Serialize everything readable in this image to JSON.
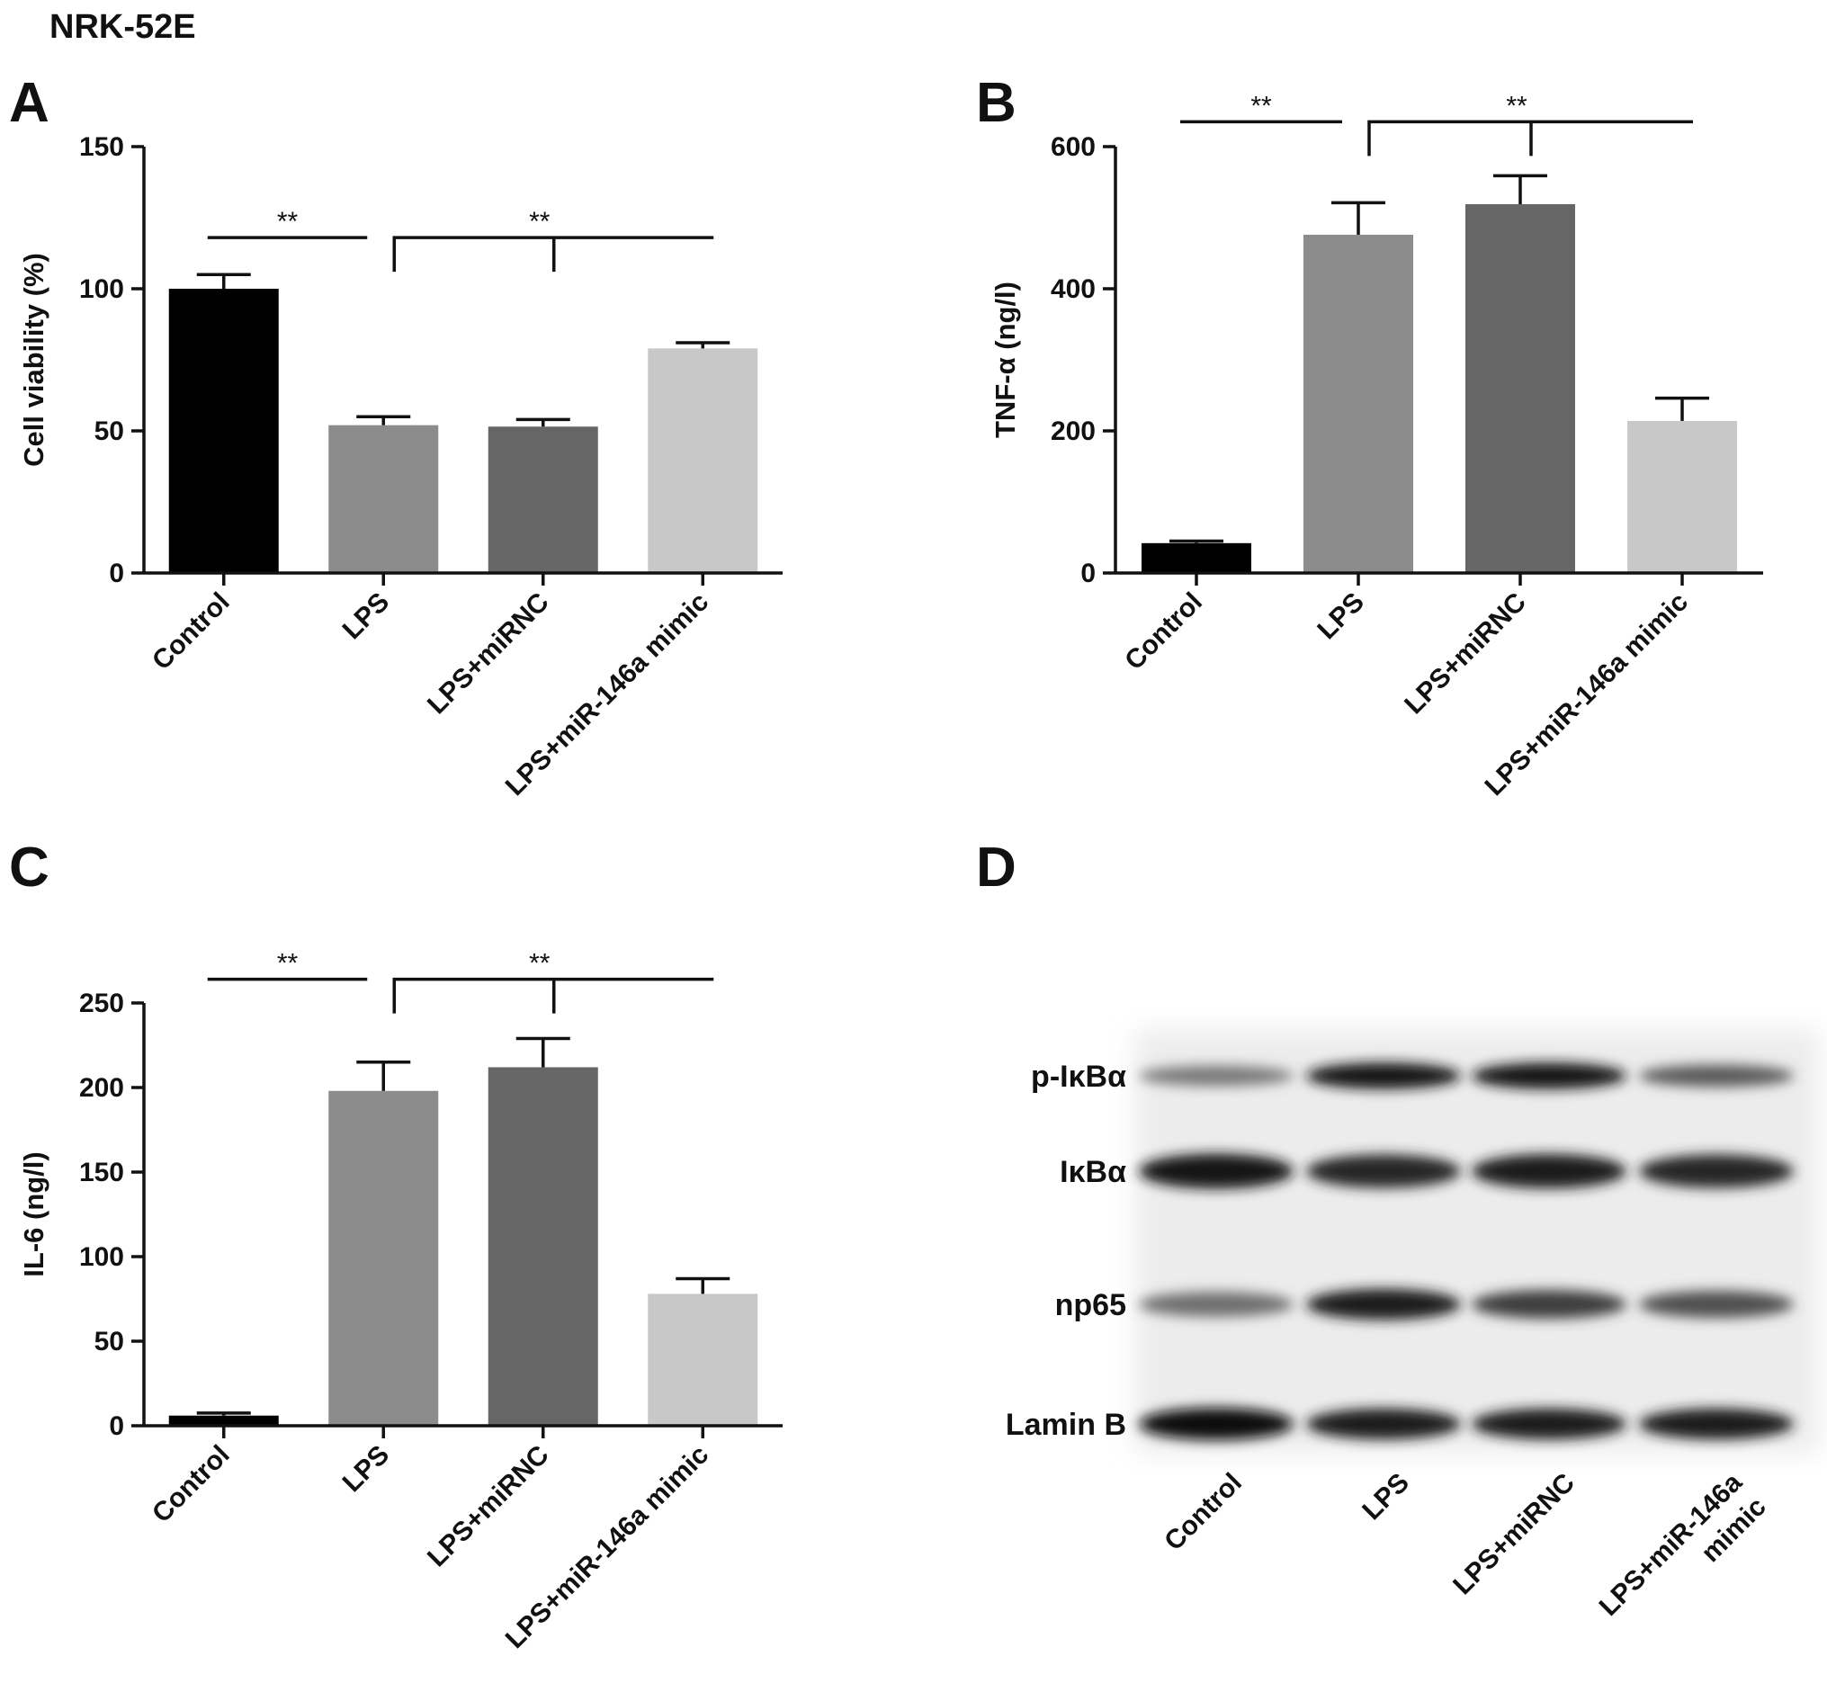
{
  "figure_title": "NRK-52E",
  "panels": {
    "A": {
      "letter": "A"
    },
    "B": {
      "letter": "B"
    },
    "C": {
      "letter": "C"
    },
    "D": {
      "letter": "D"
    }
  },
  "colors": {
    "Control": "#000000",
    "LPS": "#8c8c8c",
    "LPS+miRNC": "#666666",
    "LPS+miR-146a mimic": "#c8c8c8"
  },
  "significance_marker": "**",
  "chart_data": [
    {
      "panel": "A",
      "type": "bar",
      "categories": [
        "Control",
        "LPS",
        "LPS+miRNC",
        "LPS+miR-146a mimic"
      ],
      "values": [
        100,
        52,
        51.5,
        79
      ],
      "errors": [
        5,
        3,
        2.5,
        2
      ],
      "ylabel": "Cell viability (%)",
      "ylim": [
        0,
        150
      ],
      "yticks": [
        0,
        50,
        100,
        150
      ],
      "significance": [
        {
          "type": "line",
          "from": 0,
          "to": 1,
          "label": "**",
          "y": 118
        },
        {
          "type": "bracket",
          "from": 1,
          "to": 3,
          "label": "**",
          "y": 118
        }
      ]
    },
    {
      "panel": "B",
      "type": "bar",
      "categories": [
        "Control",
        "LPS",
        "LPS+miRNC",
        "LPS+miR-146a mimic"
      ],
      "values": [
        42,
        476,
        519,
        214
      ],
      "errors": [
        3,
        45,
        40,
        32
      ],
      "ylabel": "TNF-α (ng/l)",
      "ylim": [
        0,
        600
      ],
      "yticks": [
        0,
        200,
        400,
        600
      ],
      "significance": [
        {
          "type": "line",
          "from": 0,
          "to": 1,
          "label": "**",
          "y": 635
        },
        {
          "type": "bracket",
          "from": 1,
          "to": 3,
          "label": "**",
          "y": 635
        }
      ]
    },
    {
      "panel": "C",
      "type": "bar",
      "categories": [
        "Control",
        "LPS",
        "LPS+miRNC",
        "LPS+miR-146a mimic"
      ],
      "values": [
        6,
        198,
        212,
        78
      ],
      "errors": [
        1.5,
        17,
        17,
        9
      ],
      "ylabel": "IL-6 (ng/l)",
      "ylim": [
        0,
        250
      ],
      "yticks": [
        0,
        50,
        100,
        150,
        200,
        250
      ],
      "significance": [
        {
          "type": "line",
          "from": 0,
          "to": 1,
          "label": "**",
          "y": 264
        },
        {
          "type": "bracket",
          "from": 1,
          "to": 3,
          "label": "**",
          "y": 264
        }
      ]
    }
  ],
  "western_blot": {
    "rows": [
      {
        "label": "p-IκBα",
        "intensities": [
          0.45,
          0.95,
          0.95,
          0.6
        ]
      },
      {
        "label": "IκBα",
        "intensities": [
          0.95,
          0.85,
          0.9,
          0.85
        ]
      },
      {
        "label": "np65",
        "intensities": [
          0.5,
          0.9,
          0.75,
          0.65
        ]
      },
      {
        "label": "Lamin B",
        "intensities": [
          1.0,
          0.9,
          0.9,
          0.9
        ]
      }
    ],
    "lanes": [
      [
        "Control"
      ],
      [
        "LPS"
      ],
      [
        "LPS+miRNC"
      ],
      [
        "LPS+miR-146a",
        "mimic"
      ]
    ]
  }
}
